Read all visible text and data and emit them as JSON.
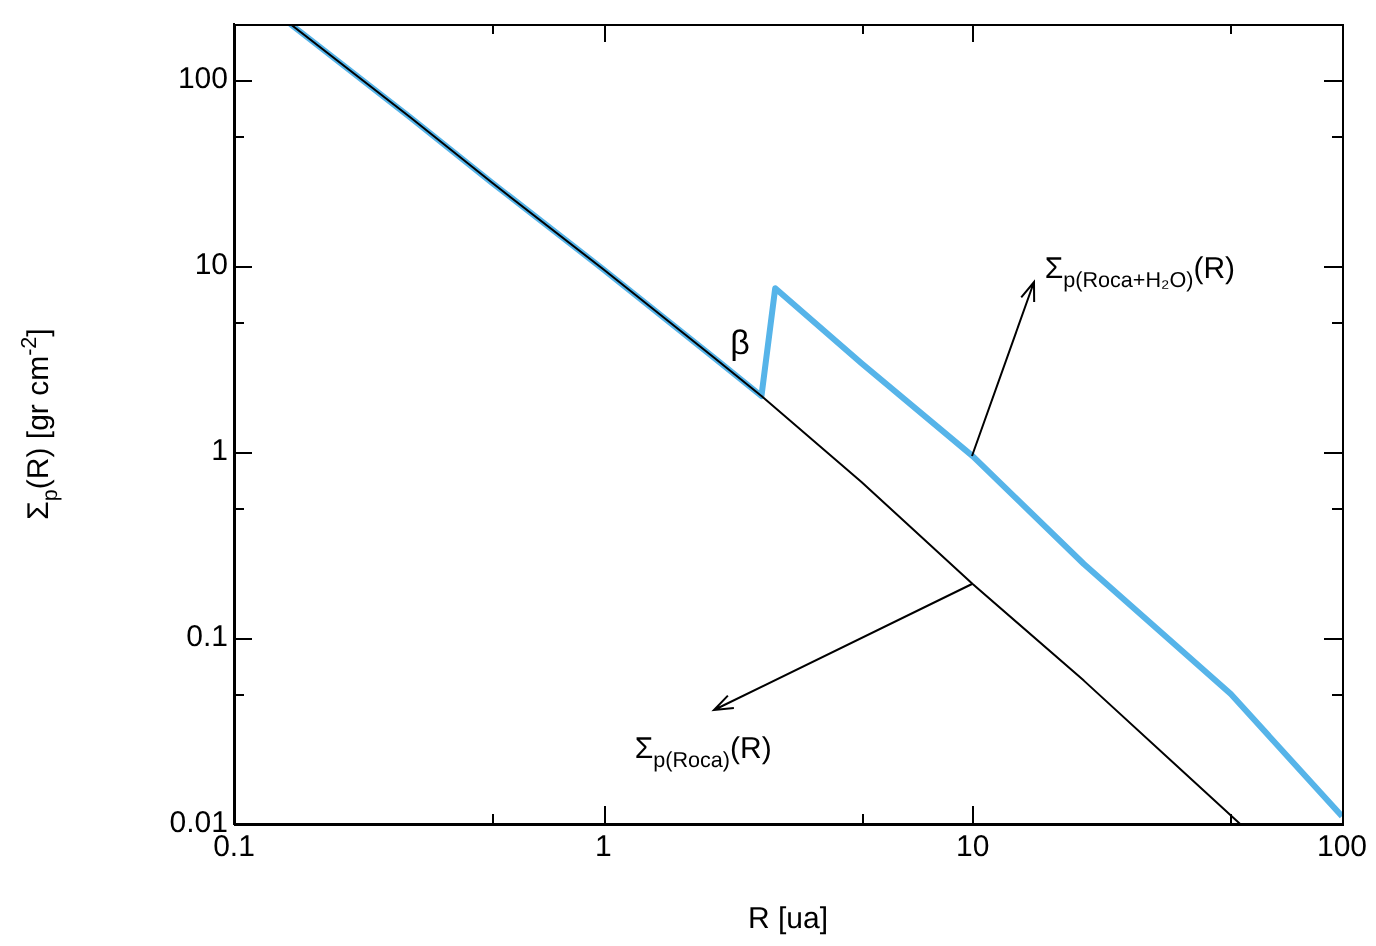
{
  "chart_data": {
    "type": "line",
    "xlabel": "R [ua]",
    "ylabel": "Σ$_{p}$(R) [gr cm$^{-2}$]",
    "log": "xy",
    "xlim": [
      0.1,
      100
    ],
    "ylim": [
      0.01,
      200
    ],
    "xticks": [
      0.1,
      {
        "value": 0.5,
        "label": null
      },
      1,
      {
        "value": 5,
        "label": null
      },
      10,
      {
        "value": 50,
        "label": null
      },
      100
    ],
    "yticks": [
      0.01,
      {
        "value": 0.05,
        "label": null
      },
      0.1,
      {
        "value": 0.5,
        "label": null
      },
      1,
      {
        "value": 5,
        "label": null
      },
      10,
      {
        "value": 50,
        "label": null
      },
      100
    ],
    "grid": false,
    "legend": false,
    "marker": "none",
    "line_style": "solid",
    "series": [
      {
        "color": "#56b4e9",
        "x": [
          0.142,
          0.3,
          0.5,
          1,
          2,
          2.68,
          2.92,
          5,
          10,
          20,
          50,
          100
        ],
        "values": [
          200,
          63,
          28,
          9.6,
          3.2,
          2,
          7.6,
          3.0,
          0.95,
          0.25,
          0.05,
          0.011
        ]
      },
      {
        "color": "#000000",
        "x": [
          0.142,
          0.3,
          0.5,
          1,
          2,
          2.68,
          5,
          10,
          20,
          53
        ],
        "values": [
          200,
          63,
          28,
          9.6,
          3.2,
          2,
          0.69,
          0.195,
          0.059,
          0.01
        ]
      }
    ],
    "annotations": [
      "β",
      {
        "text": "Σ$_{p(Roca+H₂O)}$(R)",
        "x": 10,
        "y": 0.95
      },
      {
        "text": "Σ$_{p(Roca)}$(R)",
        "x": 10,
        "y": 0.195
      }
    ]
  }
}
